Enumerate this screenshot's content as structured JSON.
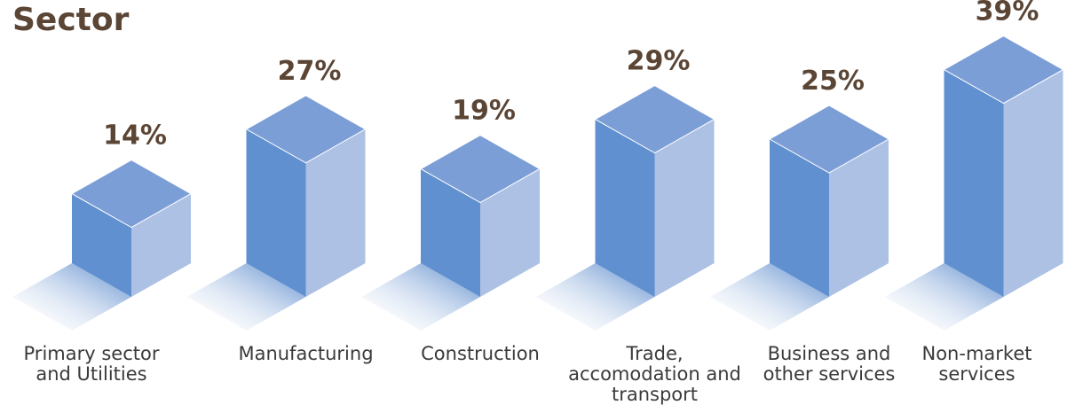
{
  "chart_data": {
    "type": "bar3d",
    "title": "Sector",
    "categories": [
      "Primary sector and Utilities",
      "Manufacturing",
      "Construction",
      "Trade, accomodation and transport",
      "Business and other services",
      "Non-market services"
    ],
    "values": [
      14,
      27,
      19,
      29,
      25,
      39
    ],
    "value_labels": [
      "14%",
      "27%",
      "19%",
      "29%",
      "25%",
      "39%"
    ],
    "colors": {
      "left": "#6090cf",
      "right": "#adc1e4",
      "top": "#7c9ed6"
    }
  }
}
